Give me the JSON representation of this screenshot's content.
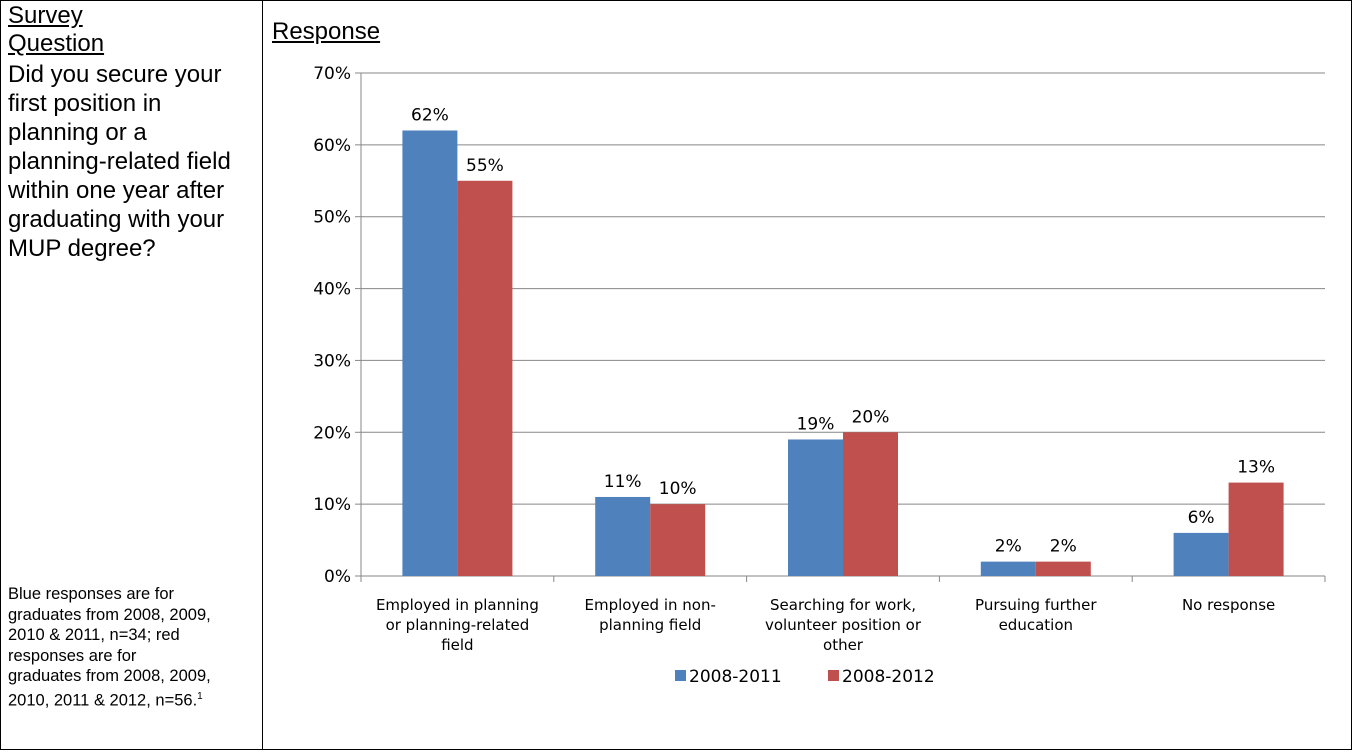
{
  "left_panel": {
    "heading": "Survey Question",
    "question": "Did you secure your first position in planning or a planning-related field within one year after graduating with your MUP degree?",
    "note": "Blue responses are for graduates from 2008, 2009, 2010 & 2011, n=34; red responses are for graduates from 2008, 2009, 2010, 2011 & 2012, n=56.",
    "note_footnote": "1"
  },
  "right_panel": {
    "heading": "Response"
  },
  "chart_data": {
    "type": "bar",
    "categories": [
      [
        "Employed in planning",
        "or planning-related",
        "field"
      ],
      [
        "Employed in non-",
        "planning field"
      ],
      [
        "Searching for work,",
        "volunteer position or",
        "other"
      ],
      [
        "Pursuing further",
        "education"
      ],
      [
        "No response"
      ]
    ],
    "series": [
      {
        "name": "2008-2011",
        "values": [
          62,
          11,
          19,
          2,
          6
        ],
        "labels": [
          "62%",
          "11%",
          "19%",
          "2%",
          "6%"
        ],
        "color": "#4f81bd"
      },
      {
        "name": "2008-2012",
        "values": [
          55,
          10,
          20,
          2,
          13
        ],
        "labels": [
          "55%",
          "10%",
          "20%",
          "2%",
          "13%"
        ],
        "color": "#c0504d"
      }
    ],
    "ylim": [
      0,
      70
    ],
    "yticks": [
      "0%",
      "10%",
      "20%",
      "30%",
      "40%",
      "50%",
      "60%",
      "70%"
    ],
    "grid": true,
    "legend": "bottom"
  }
}
